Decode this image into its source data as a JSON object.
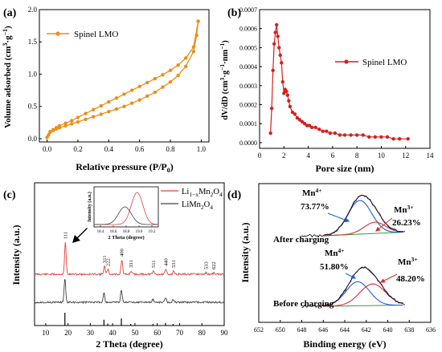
{
  "panels": [
    {
      "letter": "(a)"
    },
    {
      "letter": "(b)"
    },
    {
      "letter": "(c)"
    },
    {
      "letter": "(d)"
    }
  ],
  "chart_data": [
    {
      "id": "a",
      "type": "line",
      "xlabel": "Relative pressure (P/P",
      "xlabel_sub": "0",
      "xlabel_tail": ")",
      "ylabel": "Volume adsorbed (cm",
      "ylabel_sup1": "3",
      "ylabel_mid": "·g",
      "ylabel_sup2": "−1",
      "ylabel_tail": ")",
      "xlim": [
        -0.05,
        1.05
      ],
      "ylim": [
        -0.05,
        2.0
      ],
      "xticks": [
        "0.0",
        "0.2",
        "0.4",
        "0.6",
        "0.8",
        "1.0"
      ],
      "yticks": [
        "0.0",
        "0.5",
        "1.0",
        "1.5",
        "2.0"
      ],
      "legend": "Spinel LMO",
      "legend_position": "top-left",
      "color": "#E8901A",
      "series": [
        {
          "x": [
            0.0,
            0.01,
            0.02,
            0.04,
            0.06,
            0.08,
            0.12,
            0.16,
            0.2,
            0.25,
            0.3,
            0.35,
            0.4,
            0.45,
            0.5,
            0.55,
            0.6,
            0.65,
            0.7,
            0.75,
            0.8,
            0.85,
            0.9,
            0.95,
            0.97,
            0.98
          ],
          "y": [
            0.02,
            0.06,
            0.1,
            0.13,
            0.15,
            0.17,
            0.2,
            0.23,
            0.26,
            0.3,
            0.34,
            0.38,
            0.42,
            0.46,
            0.5,
            0.55,
            0.6,
            0.66,
            0.72,
            0.8,
            0.88,
            0.98,
            1.12,
            1.35,
            1.6,
            1.82
          ]
        },
        {
          "x": [
            0.98,
            0.95,
            0.9,
            0.85,
            0.8,
            0.75,
            0.7,
            0.65,
            0.6,
            0.55,
            0.5,
            0.45,
            0.4,
            0.35,
            0.3,
            0.25,
            0.2,
            0.16,
            0.12,
            0.08,
            0.06,
            0.04,
            0.02
          ],
          "y": [
            1.82,
            1.42,
            1.25,
            1.14,
            1.06,
            0.99,
            0.93,
            0.87,
            0.81,
            0.75,
            0.69,
            0.63,
            0.57,
            0.51,
            0.45,
            0.39,
            0.33,
            0.28,
            0.24,
            0.2,
            0.17,
            0.14,
            0.11
          ]
        }
      ]
    },
    {
      "id": "b",
      "type": "line",
      "xlabel": "Pore size (nm)",
      "ylabel": "dV/dD (cm",
      "ylabel_sup1": "3",
      "ylabel_mid": "·g",
      "ylabel_sup2": "−1",
      "ylabel_mid2": "·nm",
      "ylabel_sup3": "−1",
      "ylabel_tail": ")",
      "xlim": [
        0,
        14
      ],
      "ylim": [
        -3e-05,
        0.0007
      ],
      "xticks": [
        "0",
        "2",
        "4",
        "6",
        "8",
        "10",
        "12",
        "14"
      ],
      "yticks": [
        "0.0000",
        "0.0001",
        "0.0002",
        "0.0003",
        "0.0004",
        "0.0005",
        "0.0006",
        "0.0007"
      ],
      "legend": "Spinel LMO",
      "legend_position": "top-right",
      "color": "#D42020",
      "x": [
        0.9,
        1.0,
        1.1,
        1.2,
        1.3,
        1.4,
        1.5,
        1.6,
        1.7,
        1.8,
        1.9,
        2.0,
        2.1,
        2.2,
        2.3,
        2.4,
        2.5,
        2.7,
        2.9,
        3.1,
        3.3,
        3.5,
        3.7,
        3.9,
        4.1,
        4.3,
        4.6,
        4.9,
        5.2,
        5.5,
        5.8,
        6.2,
        6.6,
        7.0,
        7.5,
        8.0,
        8.5,
        9.0,
        9.5,
        10.0,
        10.5,
        11.0,
        11.5,
        12.2
      ],
      "y": [
        5e-05,
        0.00018,
        0.00038,
        0.00052,
        0.00058,
        0.00062,
        0.00056,
        0.0005,
        0.00046,
        0.00042,
        0.00032,
        0.00026,
        0.00028,
        0.00027,
        0.00025,
        0.00022,
        0.00019,
        0.00016,
        0.00015,
        0.00013,
        0.00012,
        0.00011,
        0.0001,
        9e-05,
        9e-05,
        8e-05,
        8e-05,
        7e-05,
        6e-05,
        6e-05,
        5e-05,
        5e-05,
        4e-05,
        4e-05,
        4e-05,
        4e-05,
        4e-05,
        3e-05,
        3e-05,
        3e-05,
        3e-05,
        2e-05,
        2e-05,
        2e-05
      ]
    },
    {
      "id": "c",
      "type": "line",
      "xlabel": "2 Theta (degree)",
      "ylabel": "Intensity (a.u.)",
      "xlim": [
        5,
        90
      ],
      "xticks": [
        "10",
        "20",
        "30",
        "40",
        "50",
        "60",
        "70",
        "80",
        "90"
      ],
      "legend": [
        {
          "name_parts": [
            "Li",
            "1−x",
            "Mn",
            "2",
            "O",
            "4"
          ],
          "color": "#E04040"
        },
        {
          "name_parts": [
            "LiMn",
            "2",
            "O",
            "4"
          ],
          "color": "#404040"
        }
      ],
      "peaks_red": [
        {
          "x": 18.8,
          "h": 40,
          "label": "111"
        },
        {
          "x": 36.3,
          "h": 10,
          "label": "311"
        },
        {
          "x": 37.9,
          "h": 6,
          "label": "222"
        },
        {
          "x": 44.1,
          "h": 18,
          "label": "400"
        },
        {
          "x": 48.3,
          "h": 4,
          "label": "331"
        },
        {
          "x": 58.3,
          "h": 4,
          "label": "511"
        },
        {
          "x": 63.9,
          "h": 6,
          "label": "440"
        },
        {
          "x": 67.3,
          "h": 4,
          "label": "531"
        },
        {
          "x": 81.9,
          "h": 2,
          "label": "533"
        },
        {
          "x": 85.4,
          "h": 2,
          "label": "622"
        }
      ],
      "peaks_black": [
        {
          "x": 18.6,
          "h": 30
        },
        {
          "x": 36.1,
          "h": 12
        },
        {
          "x": 43.9,
          "h": 16
        },
        {
          "x": 58.1,
          "h": 4
        },
        {
          "x": 63.7,
          "h": 6
        },
        {
          "x": 67.1,
          "h": 4
        }
      ],
      "ref_sticks": [
        {
          "x": 18.6,
          "h": 1.0
        },
        {
          "x": 36.1,
          "h": 0.45
        },
        {
          "x": 37.8,
          "h": 0.15
        },
        {
          "x": 43.9,
          "h": 0.55
        },
        {
          "x": 48.1,
          "h": 0.12
        },
        {
          "x": 58.1,
          "h": 0.12
        },
        {
          "x": 63.7,
          "h": 0.2
        },
        {
          "x": 67.1,
          "h": 0.12
        }
      ],
      "inset": {
        "xlabel": "2 Theta (degree)",
        "ylabel": "Intensity (a.u.)",
        "xlim": [
          18.3,
          19.3
        ],
        "xticks": [
          "18.4",
          "18.6",
          "18.8",
          "19.0",
          "19.2"
        ],
        "red_center": 18.97,
        "black_center": 18.78
      }
    },
    {
      "id": "d",
      "type": "line",
      "xlabel": "Binding energy (eV)",
      "ylabel": "Intensity (a.u.)",
      "xlim": [
        652,
        636
      ],
      "xticks": [
        "652",
        "650",
        "648",
        "646",
        "644",
        "642",
        "640",
        "638",
        "636"
      ],
      "groups": [
        {
          "label": "After charging",
          "mn4_label": "Mn",
          "mn4_sup": "4+",
          "mn4_pct": "73.77%",
          "mn3_label": "Mn",
          "mn3_sup": "3+",
          "mn3_pct": "26.23%"
        },
        {
          "label": "Before charging",
          "mn4_label": "Mn",
          "mn4_sup": "4+",
          "mn4_pct": "51.80%",
          "mn3_label": "Mn",
          "mn3_sup": "3+",
          "mn3_pct": "48.20%"
        }
      ]
    }
  ]
}
